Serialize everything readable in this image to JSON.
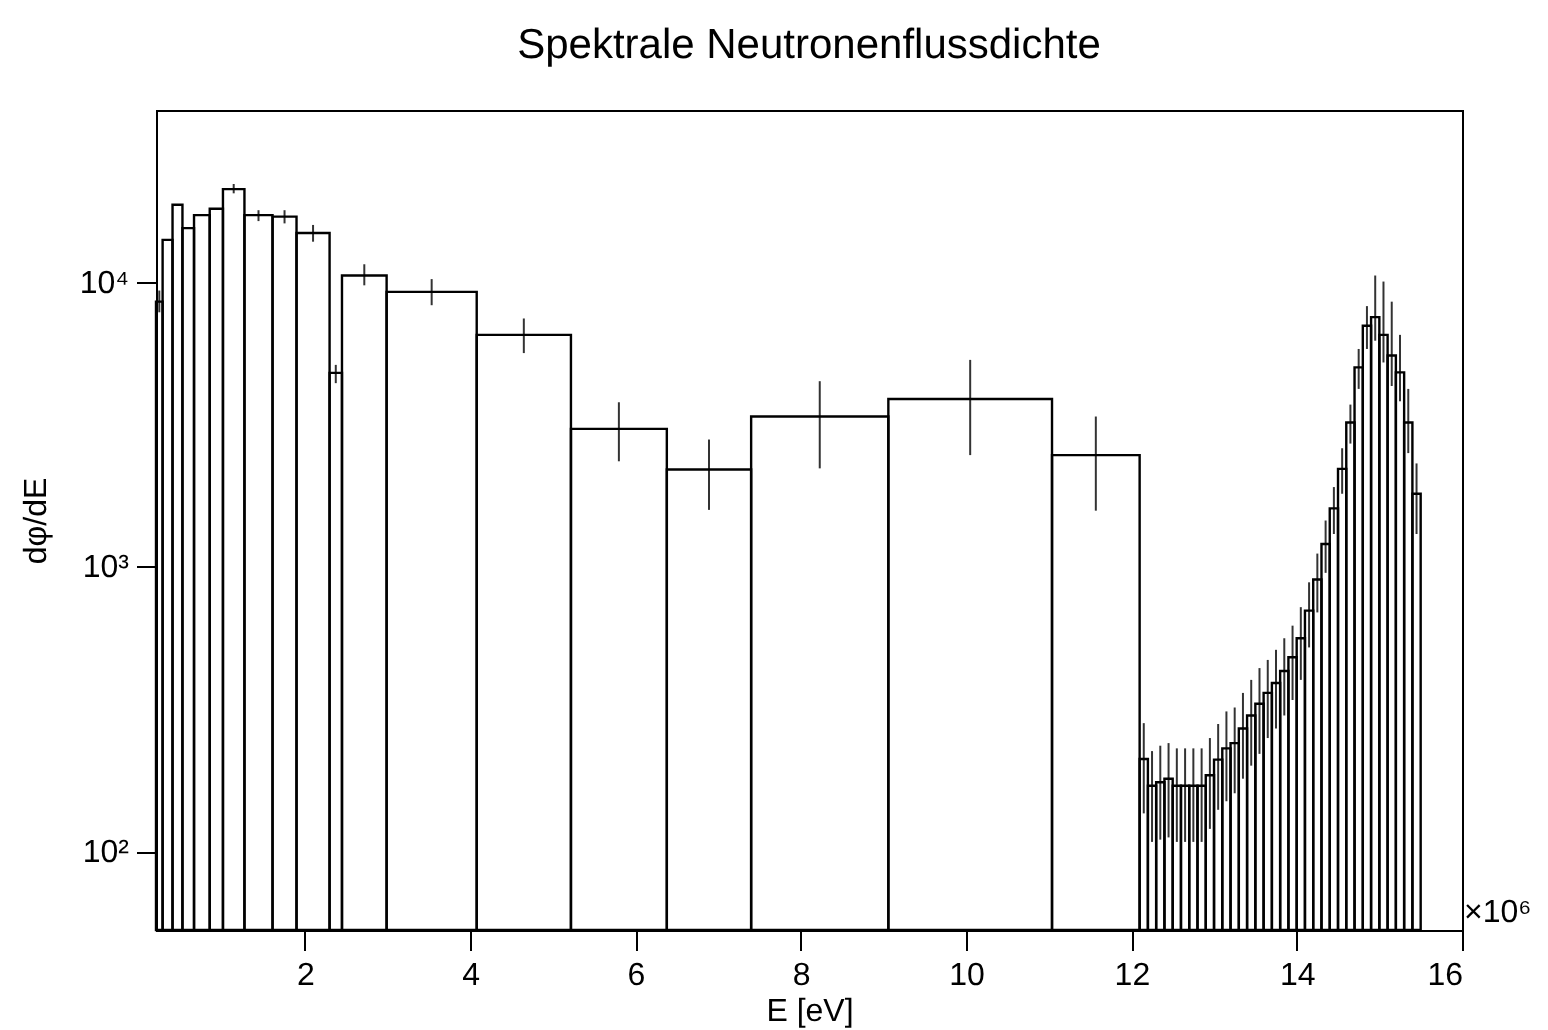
{
  "chart_data": {
    "type": "histogram",
    "title": "Spektrale Neutronenflussdichte",
    "xlabel": "E [eV]",
    "ylabel": "dφ/dE",
    "color": "#000000",
    "log": "y",
    "annotations": [
      "×10⁶"
    ],
    "xlim": [
      0.2,
      16
    ],
    "xticks": [
      2,
      4,
      6,
      8,
      10,
      12,
      14,
      16
    ],
    "ylim": [
      53,
      40000
    ],
    "yticks": [
      {
        "value": 100,
        "label": "10²"
      },
      {
        "value": 1000,
        "label": "10³"
      },
      {
        "value": 10000,
        "label": "10⁴"
      }
    ],
    "bins": [
      0.2,
      0.28,
      0.4,
      0.52,
      0.66,
      0.85,
      1.01,
      1.27,
      1.61,
      1.9,
      2.3,
      2.45,
      2.99,
      4.08,
      5.22,
      6.38,
      7.4,
      9.06,
      11.04,
      12.1,
      12.2,
      12.3,
      12.4,
      12.5,
      12.6,
      12.7,
      12.8,
      12.9,
      13.0,
      13.1,
      13.2,
      13.3,
      13.4,
      13.5,
      13.6,
      13.7,
      13.8,
      13.9,
      14.0,
      14.1,
      14.2,
      14.3,
      14.4,
      14.5,
      14.6,
      14.7,
      14.8,
      14.9,
      15.0,
      15.1,
      15.2,
      15.3,
      15.4,
      15.5
    ],
    "values": [
      8500,
      14000,
      18600,
      15400,
      17100,
      18000,
      21100,
      17100,
      16900,
      14800,
      4780,
      10500,
      9200,
      6500,
      3040,
      2190,
      3360,
      3870,
      2460,
      211,
      170,
      175,
      180,
      170,
      170,
      170,
      170,
      185,
      210,
      230,
      240,
      270,
      300,
      330,
      360,
      390,
      430,
      480,
      560,
      700,
      900,
      1200,
      1600,
      2200,
      3200,
      5000,
      7000,
      7500,
      6500,
      5500,
      4800,
      3200,
      1800
    ],
    "errors": [
      [
        7800,
        9300
      ],
      null,
      null,
      null,
      null,
      null,
      [
        20400,
        22000
      ],
      [
        16300,
        17800
      ],
      [
        16000,
        17800
      ],
      [
        13800,
        15800
      ],
      [
        4400,
        5100
      ],
      [
        9700,
        11500
      ],
      [
        8260,
        10200
      ],
      [
        5610,
        7420
      ],
      [
        2340,
        3770
      ],
      [
        1580,
        2790
      ],
      [
        2210,
        4470
      ],
      [
        2460,
        5310
      ],
      [
        1570,
        3360
      ],
      [
        136,
        282
      ],
      [
        108,
        225
      ],
      [
        110,
        235
      ],
      [
        112,
        240
      ],
      [
        108,
        230
      ],
      [
        108,
        230
      ],
      [
        108,
        230
      ],
      [
        108,
        230
      ],
      [
        120,
        250
      ],
      [
        140,
        280
      ],
      [
        150,
        310
      ],
      [
        160,
        320
      ],
      [
        180,
        360
      ],
      [
        200,
        400
      ],
      [
        220,
        440
      ],
      [
        250,
        470
      ],
      [
        270,
        510
      ],
      [
        300,
        560
      ],
      [
        340,
        620
      ],
      [
        400,
        720
      ],
      [
        520,
        880
      ],
      [
        690,
        1110
      ],
      [
        950,
        1450
      ],
      [
        1300,
        1900
      ],
      [
        1800,
        2600
      ],
      [
        2700,
        3700
      ],
      [
        4200,
        5800
      ],
      [
        5800,
        8200
      ],
      [
        6200,
        10500
      ],
      [
        5200,
        10000
      ],
      [
        4300,
        8500
      ],
      [
        3800,
        6500
      ],
      [
        2500,
        4200
      ],
      [
        1300,
        2300
      ]
    ]
  }
}
